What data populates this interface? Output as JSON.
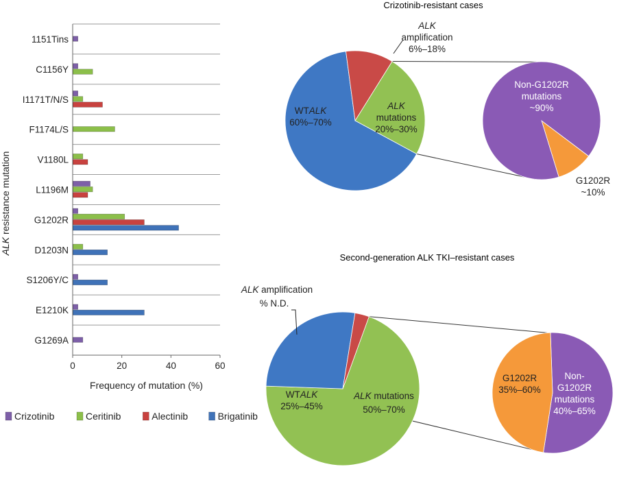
{
  "chart_data": [
    {
      "type": "bar",
      "orientation": "horizontal",
      "xlabel": "Frequency of mutation (%)",
      "ylabel_italic": "ALK",
      "ylabel_rest": " resistance mutation",
      "xlim": [
        0,
        60
      ],
      "xticks": [
        0,
        20,
        40,
        60
      ],
      "grid": "horizontal separators",
      "legend_placement": "bottom",
      "categories": [
        "1151Tins",
        "C1156Y",
        "I1171T/N/S",
        "F1174L/S",
        "V1180L",
        "L1196M",
        "G1202R",
        "D1203N",
        "S1206Y/C",
        "E1210K",
        "G1269A"
      ],
      "series": [
        {
          "name": "Crizotinib",
          "color": "#7d5fa8",
          "values": [
            2,
            2,
            2,
            0,
            0,
            7,
            2,
            0,
            2,
            2,
            4
          ]
        },
        {
          "name": "Ceritinib",
          "color": "#8cbf4a",
          "values": [
            0,
            8,
            4,
            17,
            4,
            8,
            21,
            4,
            0,
            0,
            0
          ]
        },
        {
          "name": "Alectinib",
          "color": "#c8423f",
          "values": [
            0,
            0,
            12,
            0,
            6,
            6,
            29,
            0,
            0,
            0,
            0
          ]
        },
        {
          "name": "Brigatinib",
          "color": "#3f72b8",
          "values": [
            0,
            0,
            0,
            0,
            0,
            0,
            43,
            14,
            14,
            29,
            0
          ]
        }
      ]
    },
    {
      "type": "pie",
      "title": "Crizotinib-resistant cases",
      "slices": [
        {
          "label_italic": "",
          "label_rest": "WT",
          "label_tail_italic": "ALK",
          "range": "60%–70%",
          "value": 65,
          "color": "#3f78c4"
        },
        {
          "label_italic": "ALK",
          "label_rest": "amplification",
          "range": "6%–18%",
          "value": 11,
          "color": "#c94a47"
        },
        {
          "label_italic": "ALK",
          "label_rest": "mutations",
          "range": "20%–30%",
          "value": 24,
          "color": "#92c153"
        }
      ],
      "breakdown": {
        "of": "ALK mutations",
        "slices": [
          {
            "line1": "Non-G1202R",
            "line2": "mutations",
            "line3": "~90%",
            "value": 90,
            "color": "#8a5ab5"
          },
          {
            "line1": "G1202R",
            "line2": "~10%",
            "value": 10,
            "color": "#f5993a"
          }
        ]
      }
    },
    {
      "type": "pie",
      "title": "Second-generation ALK TKI–resistant cases",
      "slices": [
        {
          "label_rest": "WT",
          "label_tail_italic": "ALK",
          "range": "25%–45%",
          "value": 27,
          "color": "#3f78c4"
        },
        {
          "label_italic": "ALK",
          "label_rest": " amplification",
          "range": "% N.D.",
          "value": 3,
          "color": "#c94a47"
        },
        {
          "label_italic": "ALK",
          "label_rest": " mutations",
          "range": "50%–70%",
          "value": 70,
          "color": "#92c153"
        }
      ],
      "breakdown": {
        "of": "ALK mutations",
        "slices": [
          {
            "line1": "G1202R",
            "line2": "35%–60%",
            "value": 47,
            "color": "#f5993a"
          },
          {
            "line1": "Non-",
            "line2": "G1202R",
            "line3": "mutations",
            "line4": "40%–65%",
            "value": 53,
            "color": "#8a5ab5"
          }
        ]
      }
    }
  ]
}
